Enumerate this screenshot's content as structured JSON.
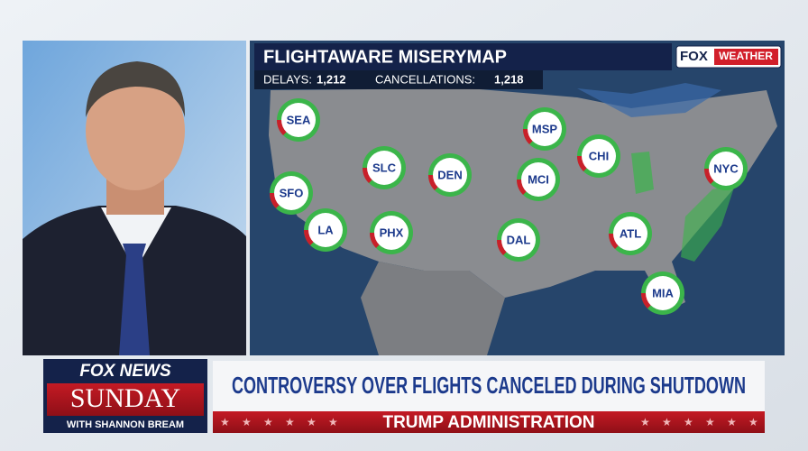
{
  "map": {
    "title": "FLIGHTAWARE MISERYMAP",
    "brand_left": "FOX",
    "brand_right": "WEATHER",
    "delays_label": "DELAYS:",
    "delays": "1,212",
    "cancellations_label": "CANCELLATIONS:",
    "cancellations": "1,218",
    "airports": [
      "SEA",
      "SFO",
      "LA",
      "SLC",
      "PHX",
      "DEN",
      "MCI",
      "DAL",
      "MSP",
      "CHI",
      "ATL",
      "NYC",
      "MIA"
    ]
  },
  "lower_third": {
    "logo_top": "FOX NEWS",
    "logo_main": "SUNDAY",
    "logo_host": "WITH SHANNON BREAM",
    "headline": "CONTROVERSY OVER FLIGHTS CANCELED DURING SHUTDOWN",
    "subhead": "TRUMP ADMINISTRATION"
  }
}
